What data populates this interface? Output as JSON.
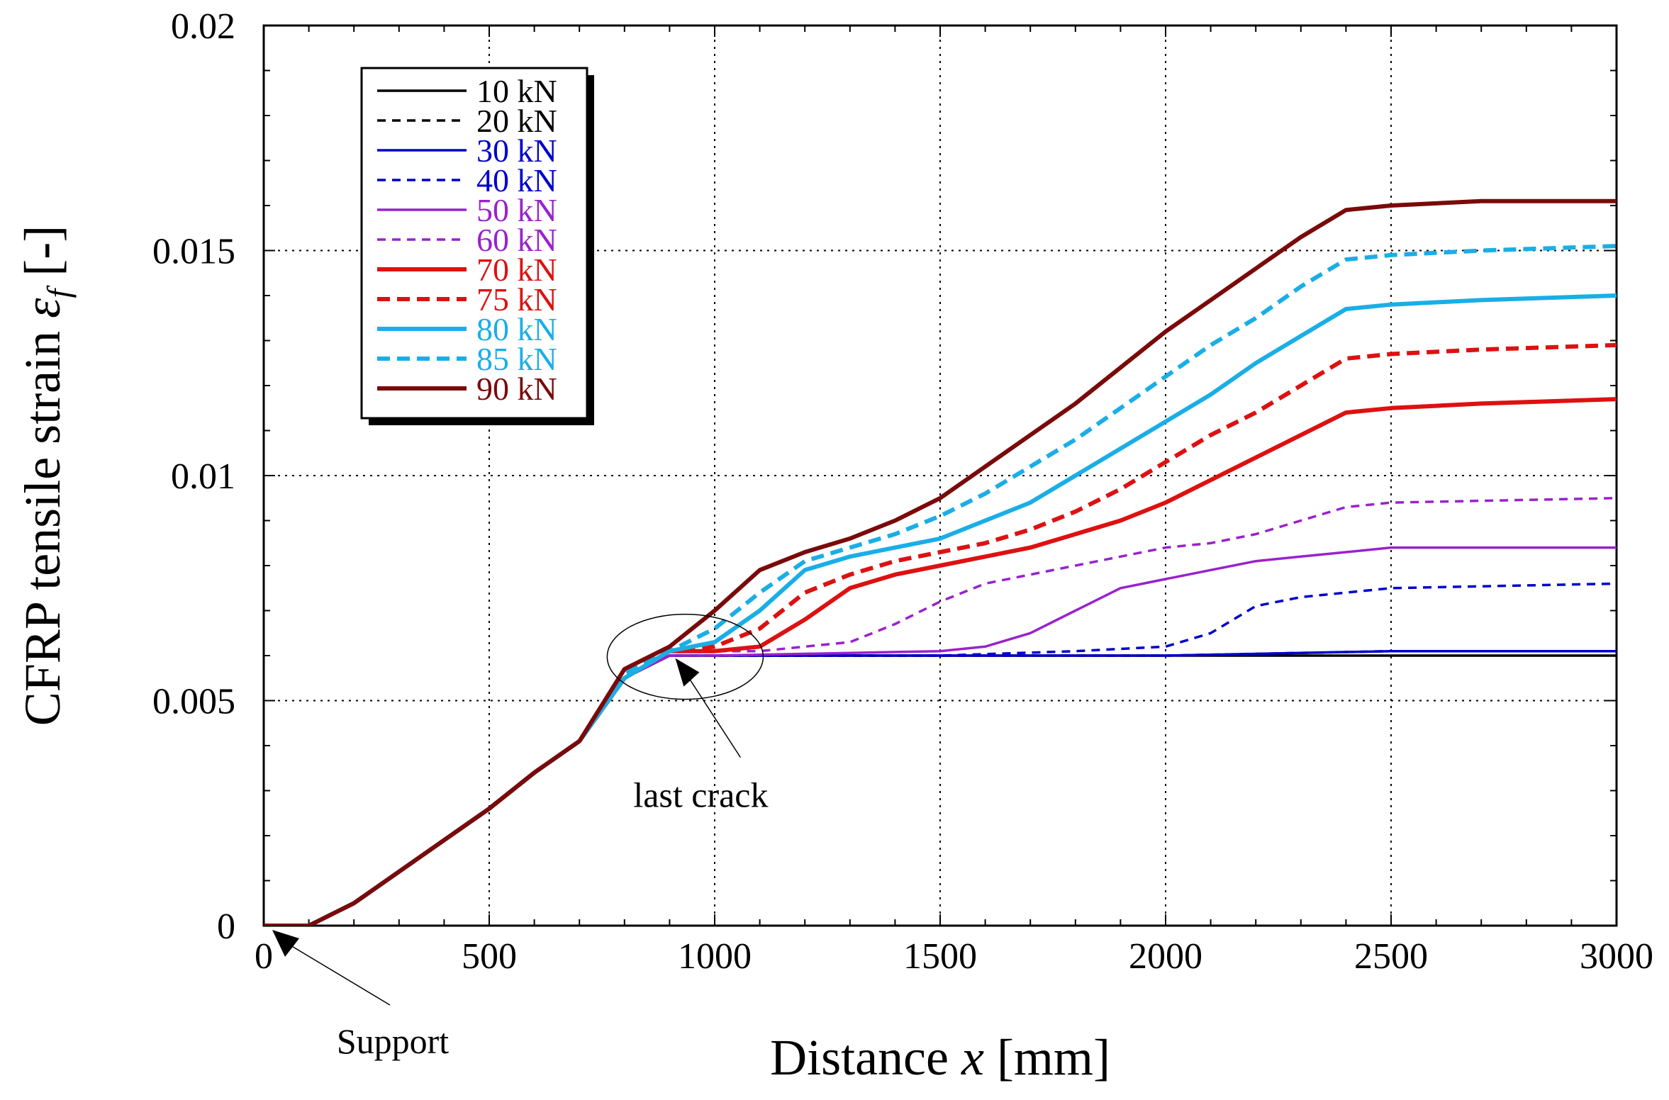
{
  "chart_data": {
    "type": "line",
    "xlabel_prefix": "Distance ",
    "xlabel_var": "x",
    "xlabel_unit": " [mm]",
    "ylabel_prefix": "CFRP tensile strain ",
    "ylabel_var": "ε",
    "ylabel_sub": "f",
    "ylabel_unit": " [-]",
    "xlim": [
      0,
      3000
    ],
    "ylim": [
      0,
      0.02
    ],
    "x_ticks": [
      0,
      500,
      1000,
      1500,
      2000,
      2500,
      3000
    ],
    "x_tick_labels": [
      "0",
      "500",
      "1000",
      "1500",
      "2000",
      "2500",
      "3000"
    ],
    "y_ticks": [
      0,
      0.005,
      0.01,
      0.015,
      0.02
    ],
    "y_tick_labels": [
      "0",
      "0.005",
      "0.01",
      "0.015",
      "0.02"
    ],
    "grid": true,
    "legend_position": "top-left",
    "series": [
      {
        "name": "10 kN",
        "color": "#000000",
        "dash": "solid",
        "weight": "normal",
        "points": [
          [
            0,
            0
          ],
          [
            100,
            0
          ],
          [
            200,
            0.0005
          ],
          [
            300,
            0.0012
          ],
          [
            400,
            0.0019
          ],
          [
            500,
            0.0026
          ],
          [
            600,
            0.0034
          ],
          [
            700,
            0.0041
          ],
          [
            800,
            0.0055
          ],
          [
            900,
            0.006
          ],
          [
            1000,
            0.006
          ],
          [
            1500,
            0.006
          ],
          [
            2000,
            0.006
          ],
          [
            2500,
            0.006
          ],
          [
            3000,
            0.006
          ]
        ]
      },
      {
        "name": "20 kN",
        "color": "#000000",
        "dash": "dashed",
        "weight": "normal",
        "points": [
          [
            0,
            0
          ],
          [
            100,
            0
          ],
          [
            200,
            0.0005
          ],
          [
            300,
            0.0012
          ],
          [
            400,
            0.0019
          ],
          [
            500,
            0.0026
          ],
          [
            600,
            0.0034
          ],
          [
            700,
            0.0041
          ],
          [
            800,
            0.0055
          ],
          [
            900,
            0.006
          ],
          [
            1000,
            0.006
          ],
          [
            1500,
            0.006
          ],
          [
            2000,
            0.006
          ],
          [
            2500,
            0.0061
          ],
          [
            3000,
            0.0061
          ]
        ]
      },
      {
        "name": "30 kN",
        "color": "#0000cc",
        "dash": "solid",
        "weight": "normal",
        "points": [
          [
            0,
            0
          ],
          [
            100,
            0
          ],
          [
            200,
            0.0005
          ],
          [
            300,
            0.0012
          ],
          [
            400,
            0.0019
          ],
          [
            500,
            0.0026
          ],
          [
            600,
            0.0034
          ],
          [
            700,
            0.0041
          ],
          [
            800,
            0.0055
          ],
          [
            900,
            0.006
          ],
          [
            1000,
            0.006
          ],
          [
            1500,
            0.006
          ],
          [
            2000,
            0.006
          ],
          [
            2500,
            0.0061
          ],
          [
            3000,
            0.0061
          ]
        ]
      },
      {
        "name": "40 kN",
        "color": "#0000cc",
        "dash": "dashed",
        "weight": "normal",
        "points": [
          [
            0,
            0
          ],
          [
            100,
            0
          ],
          [
            200,
            0.0005
          ],
          [
            300,
            0.0012
          ],
          [
            400,
            0.0019
          ],
          [
            500,
            0.0026
          ],
          [
            600,
            0.0034
          ],
          [
            700,
            0.0041
          ],
          [
            800,
            0.0055
          ],
          [
            900,
            0.006
          ],
          [
            1000,
            0.006
          ],
          [
            1500,
            0.006
          ],
          [
            1800,
            0.0061
          ],
          [
            2000,
            0.0062
          ],
          [
            2100,
            0.0065
          ],
          [
            2200,
            0.0071
          ],
          [
            2300,
            0.0073
          ],
          [
            2400,
            0.0074
          ],
          [
            2500,
            0.0075
          ],
          [
            3000,
            0.0076
          ]
        ]
      },
      {
        "name": "50 kN",
        "color": "#9922cc",
        "dash": "solid",
        "weight": "normal",
        "points": [
          [
            0,
            0
          ],
          [
            100,
            0
          ],
          [
            200,
            0.0005
          ],
          [
            300,
            0.0012
          ],
          [
            400,
            0.0019
          ],
          [
            500,
            0.0026
          ],
          [
            600,
            0.0034
          ],
          [
            700,
            0.0041
          ],
          [
            800,
            0.0055
          ],
          [
            900,
            0.006
          ],
          [
            1000,
            0.006
          ],
          [
            1500,
            0.0061
          ],
          [
            1600,
            0.0062
          ],
          [
            1700,
            0.0065
          ],
          [
            1800,
            0.007
          ],
          [
            1900,
            0.0075
          ],
          [
            2000,
            0.0077
          ],
          [
            2100,
            0.0079
          ],
          [
            2200,
            0.0081
          ],
          [
            2300,
            0.0082
          ],
          [
            2400,
            0.0083
          ],
          [
            2500,
            0.0084
          ],
          [
            3000,
            0.0084
          ]
        ]
      },
      {
        "name": "60 kN",
        "color": "#9922cc",
        "dash": "dashed",
        "weight": "normal",
        "points": [
          [
            0,
            0
          ],
          [
            100,
            0
          ],
          [
            200,
            0.0005
          ],
          [
            300,
            0.0012
          ],
          [
            400,
            0.0019
          ],
          [
            500,
            0.0026
          ],
          [
            600,
            0.0034
          ],
          [
            700,
            0.0041
          ],
          [
            800,
            0.0055
          ],
          [
            900,
            0.0061
          ],
          [
            1000,
            0.0061
          ],
          [
            1100,
            0.0061
          ],
          [
            1200,
            0.0062
          ],
          [
            1300,
            0.0063
          ],
          [
            1400,
            0.0067
          ],
          [
            1500,
            0.0072
          ],
          [
            1600,
            0.0076
          ],
          [
            1700,
            0.0078
          ],
          [
            1800,
            0.008
          ],
          [
            1900,
            0.0082
          ],
          [
            2000,
            0.0084
          ],
          [
            2100,
            0.0085
          ],
          [
            2200,
            0.0087
          ],
          [
            2300,
            0.009
          ],
          [
            2400,
            0.0093
          ],
          [
            2500,
            0.0094
          ],
          [
            3000,
            0.0095
          ]
        ]
      },
      {
        "name": "70 kN",
        "color": "#dd1111",
        "dash": "solid",
        "weight": "bold",
        "points": [
          [
            0,
            0
          ],
          [
            100,
            0
          ],
          [
            200,
            0.0005
          ],
          [
            300,
            0.0012
          ],
          [
            400,
            0.0019
          ],
          [
            500,
            0.0026
          ],
          [
            600,
            0.0034
          ],
          [
            700,
            0.0041
          ],
          [
            800,
            0.0055
          ],
          [
            900,
            0.0061
          ],
          [
            1000,
            0.0061
          ],
          [
            1100,
            0.0062
          ],
          [
            1200,
            0.0068
          ],
          [
            1300,
            0.0075
          ],
          [
            1400,
            0.0078
          ],
          [
            1500,
            0.008
          ],
          [
            1600,
            0.0082
          ],
          [
            1700,
            0.0084
          ],
          [
            1800,
            0.0087
          ],
          [
            1900,
            0.009
          ],
          [
            2000,
            0.0094
          ],
          [
            2100,
            0.0099
          ],
          [
            2200,
            0.0104
          ],
          [
            2300,
            0.0109
          ],
          [
            2400,
            0.0114
          ],
          [
            2500,
            0.0115
          ],
          [
            2700,
            0.0116
          ],
          [
            3000,
            0.0117
          ]
        ]
      },
      {
        "name": "75 kN",
        "color": "#dd1111",
        "dash": "dashed",
        "weight": "bold",
        "points": [
          [
            0,
            0
          ],
          [
            100,
            0
          ],
          [
            200,
            0.0005
          ],
          [
            300,
            0.0012
          ],
          [
            400,
            0.0019
          ],
          [
            500,
            0.0026
          ],
          [
            600,
            0.0034
          ],
          [
            700,
            0.0041
          ],
          [
            800,
            0.0055
          ],
          [
            900,
            0.0061
          ],
          [
            1000,
            0.0062
          ],
          [
            1100,
            0.0066
          ],
          [
            1200,
            0.0074
          ],
          [
            1300,
            0.0078
          ],
          [
            1400,
            0.0081
          ],
          [
            1500,
            0.0083
          ],
          [
            1600,
            0.0085
          ],
          [
            1700,
            0.0088
          ],
          [
            1800,
            0.0092
          ],
          [
            1900,
            0.0097
          ],
          [
            2000,
            0.0103
          ],
          [
            2100,
            0.0109
          ],
          [
            2200,
            0.0114
          ],
          [
            2300,
            0.012
          ],
          [
            2400,
            0.0126
          ],
          [
            2500,
            0.0127
          ],
          [
            2700,
            0.0128
          ],
          [
            3000,
            0.0129
          ]
        ]
      },
      {
        "name": "80 kN",
        "color": "#1aaee6",
        "dash": "solid",
        "weight": "bold",
        "points": [
          [
            0,
            0
          ],
          [
            100,
            0
          ],
          [
            200,
            0.0005
          ],
          [
            300,
            0.0012
          ],
          [
            400,
            0.0019
          ],
          [
            500,
            0.0026
          ],
          [
            600,
            0.0034
          ],
          [
            700,
            0.0041
          ],
          [
            800,
            0.0055
          ],
          [
            900,
            0.0061
          ],
          [
            1000,
            0.0063
          ],
          [
            1100,
            0.007
          ],
          [
            1200,
            0.0079
          ],
          [
            1300,
            0.0082
          ],
          [
            1400,
            0.0084
          ],
          [
            1500,
            0.0086
          ],
          [
            1600,
            0.009
          ],
          [
            1700,
            0.0094
          ],
          [
            1800,
            0.01
          ],
          [
            1900,
            0.0106
          ],
          [
            2000,
            0.0112
          ],
          [
            2100,
            0.0118
          ],
          [
            2200,
            0.0125
          ],
          [
            2300,
            0.0131
          ],
          [
            2400,
            0.0137
          ],
          [
            2500,
            0.0138
          ],
          [
            2700,
            0.0139
          ],
          [
            3000,
            0.014
          ]
        ]
      },
      {
        "name": "85 kN",
        "color": "#1aaee6",
        "dash": "dashed",
        "weight": "bold",
        "points": [
          [
            0,
            0
          ],
          [
            100,
            0
          ],
          [
            200,
            0.0005
          ],
          [
            300,
            0.0012
          ],
          [
            400,
            0.0019
          ],
          [
            500,
            0.0026
          ],
          [
            600,
            0.0034
          ],
          [
            700,
            0.0041
          ],
          [
            800,
            0.0056
          ],
          [
            900,
            0.0061
          ],
          [
            1000,
            0.0066
          ],
          [
            1100,
            0.0074
          ],
          [
            1200,
            0.0081
          ],
          [
            1300,
            0.0084
          ],
          [
            1400,
            0.0087
          ],
          [
            1500,
            0.0091
          ],
          [
            1600,
            0.0096
          ],
          [
            1700,
            0.0102
          ],
          [
            1800,
            0.0108
          ],
          [
            1900,
            0.0115
          ],
          [
            2000,
            0.0122
          ],
          [
            2100,
            0.0129
          ],
          [
            2200,
            0.0135
          ],
          [
            2300,
            0.0142
          ],
          [
            2400,
            0.0148
          ],
          [
            2500,
            0.0149
          ],
          [
            2700,
            0.015
          ],
          [
            3000,
            0.0151
          ]
        ]
      },
      {
        "name": "90 kN",
        "color": "#7a0a0a",
        "dash": "solid",
        "weight": "bold",
        "points": [
          [
            0,
            0
          ],
          [
            100,
            0
          ],
          [
            200,
            0.0005
          ],
          [
            300,
            0.0012
          ],
          [
            400,
            0.0019
          ],
          [
            500,
            0.0026
          ],
          [
            600,
            0.0034
          ],
          [
            700,
            0.0041
          ],
          [
            800,
            0.0057
          ],
          [
            900,
            0.0062
          ],
          [
            1000,
            0.007
          ],
          [
            1100,
            0.0079
          ],
          [
            1200,
            0.0083
          ],
          [
            1300,
            0.0086
          ],
          [
            1400,
            0.009
          ],
          [
            1500,
            0.0095
          ],
          [
            1600,
            0.0102
          ],
          [
            1700,
            0.0109
          ],
          [
            1800,
            0.0116
          ],
          [
            1900,
            0.0124
          ],
          [
            2000,
            0.0132
          ],
          [
            2100,
            0.0139
          ],
          [
            2200,
            0.0146
          ],
          [
            2300,
            0.0153
          ],
          [
            2400,
            0.0159
          ],
          [
            2500,
            0.016
          ],
          [
            2700,
            0.0161
          ],
          [
            3000,
            0.0161
          ]
        ]
      }
    ],
    "annotations": [
      {
        "text": "last crack",
        "target": [
          900,
          0.0061
        ]
      },
      {
        "text": "Support",
        "target": [
          0,
          0
        ]
      }
    ]
  }
}
